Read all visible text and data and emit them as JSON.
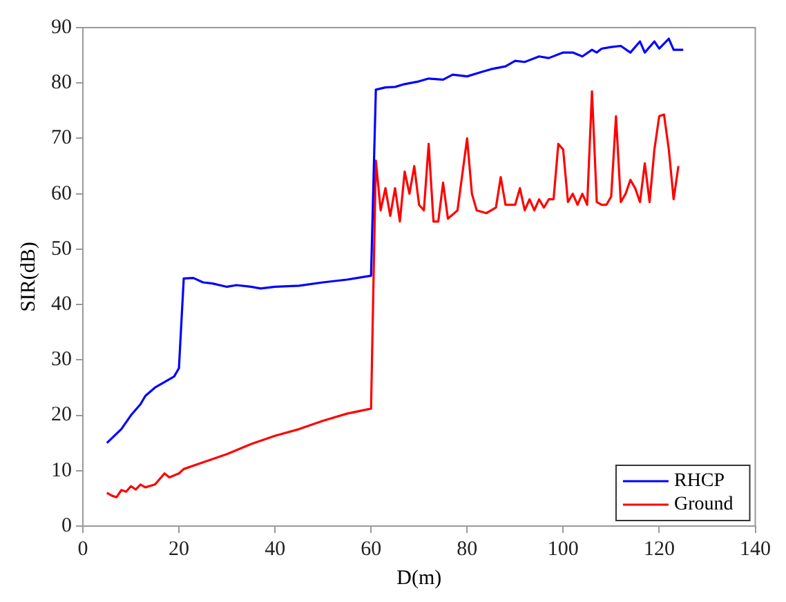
{
  "chart_data": {
    "type": "line",
    "xlabel": "D(m)",
    "ylabel": "SIR(dB)",
    "xlim": [
      0,
      140
    ],
    "xticks": [
      0,
      20,
      40,
      60,
      80,
      100,
      120,
      140
    ],
    "ylim": [
      0,
      90
    ],
    "yticks": [
      0,
      10,
      20,
      30,
      40,
      50,
      60,
      70,
      80,
      90
    ],
    "grid": false,
    "legend": "bottom right",
    "marker": "none",
    "line_style": "solid",
    "series": [
      {
        "name": "RHCP",
        "color": "#0000ff",
        "x": [
          5,
          8,
          10,
          12,
          13,
          15,
          17,
          19,
          20,
          21,
          23,
          25,
          27,
          30,
          32,
          35,
          37,
          40,
          45,
          50,
          55,
          60,
          61,
          63,
          65,
          67,
          70,
          72,
          75,
          77,
          80,
          83,
          85,
          88,
          90,
          92,
          95,
          97,
          100,
          102,
          104,
          106,
          107,
          108,
          110,
          112,
          114,
          116,
          117,
          119,
          120,
          122,
          123,
          125
        ],
        "values": [
          15,
          17.5,
          20,
          22,
          23.5,
          25,
          26,
          27,
          28.5,
          44.7,
          44.8,
          44,
          43.8,
          43.2,
          43.5,
          43.2,
          42.9,
          43.2,
          43.4,
          44,
          44.5,
          45.2,
          78.8,
          79.2,
          79.3,
          79.8,
          80.3,
          80.8,
          80.6,
          81.5,
          81.2,
          82,
          82.5,
          83,
          84,
          83.8,
          84.8,
          84.5,
          85.5,
          85.5,
          84.8,
          86,
          85.5,
          86.2,
          86.5,
          86.7,
          85.5,
          87.5,
          85.5,
          87.5,
          86.2,
          88,
          86,
          86
        ]
      },
      {
        "name": "Ground",
        "color": "#ff0000",
        "x": [
          5,
          6,
          7,
          8,
          9,
          10,
          11,
          12,
          13,
          15,
          17,
          18,
          20,
          21,
          25,
          30,
          35,
          40,
          45,
          50,
          55,
          60,
          61,
          62,
          63,
          64,
          65,
          66,
          67,
          68,
          69,
          70,
          71,
          72,
          73,
          74,
          75,
          76,
          78,
          80,
          81,
          82,
          84,
          86,
          87,
          88,
          90,
          91,
          92,
          93,
          94,
          95,
          96,
          97,
          98,
          99,
          100,
          101,
          102,
          103,
          104,
          105,
          106,
          107,
          108,
          109,
          110,
          111,
          112,
          113,
          114,
          115,
          116,
          117,
          118,
          119,
          120,
          121,
          122,
          123,
          124
        ],
        "values": [
          6,
          5.5,
          5.2,
          6.5,
          6.2,
          7.2,
          6.6,
          7.5,
          7,
          7.5,
          9.5,
          8.8,
          9.5,
          10.3,
          11.5,
          13,
          14.8,
          16.3,
          17.5,
          19,
          20.3,
          21.2,
          66,
          57,
          61,
          56,
          61,
          55,
          64,
          60,
          65,
          58,
          57,
          69,
          55,
          55,
          62,
          55.5,
          57,
          70,
          60,
          57,
          56.5,
          57.5,
          63,
          58,
          58,
          61,
          57,
          59,
          57,
          59,
          57.5,
          59,
          59,
          69,
          68,
          58.5,
          60,
          58,
          60,
          58,
          78.5,
          58.5,
          58,
          58,
          59.5,
          74,
          58.5,
          60,
          62.5,
          61,
          58.5,
          65.5,
          58.5,
          68,
          74,
          74.3,
          68,
          59,
          65
        ]
      }
    ]
  }
}
